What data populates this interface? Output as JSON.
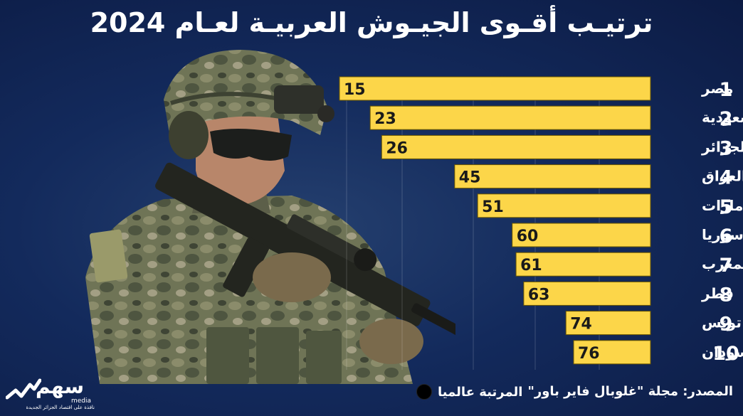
{
  "title": "ترتيـب أقـوى الجيـوش العربيـة لعـام 2024",
  "source": "المصدر: مجلة \"غلوبال فاير باور\"",
  "legend_label": "المرتبة عالميا",
  "logo": {
    "word": "سهم",
    "media": "media",
    "tagline": "نافذة على اقتصاد الجزائر الجديدة"
  },
  "colors": {
    "bar": "#fcd649",
    "bar_stroke": "#6a5600",
    "background": "#0e1f4a",
    "text": "#ffffff",
    "value_text": "#1a1a1a"
  },
  "chart_data": {
    "type": "bar",
    "orientation": "horizontal",
    "title": "ترتيـب أقـوى الجيـوش العربيـة لعـام 2024",
    "ranks": [
      "1",
      "2",
      "3",
      "4",
      "5",
      "6",
      "7",
      "8",
      "9",
      "10"
    ],
    "categories": [
      "مصر",
      "السعودية",
      "الجزائر",
      "العراق",
      "الامارات",
      "سوريا",
      "المغرب",
      "قطر",
      "تونس",
      "السودان"
    ],
    "values": [
      15,
      23,
      26,
      45,
      51,
      60,
      61,
      63,
      74,
      76
    ],
    "value_meaning": "المرتبة عالميا",
    "bars_anchored": "right",
    "grid": false
  }
}
